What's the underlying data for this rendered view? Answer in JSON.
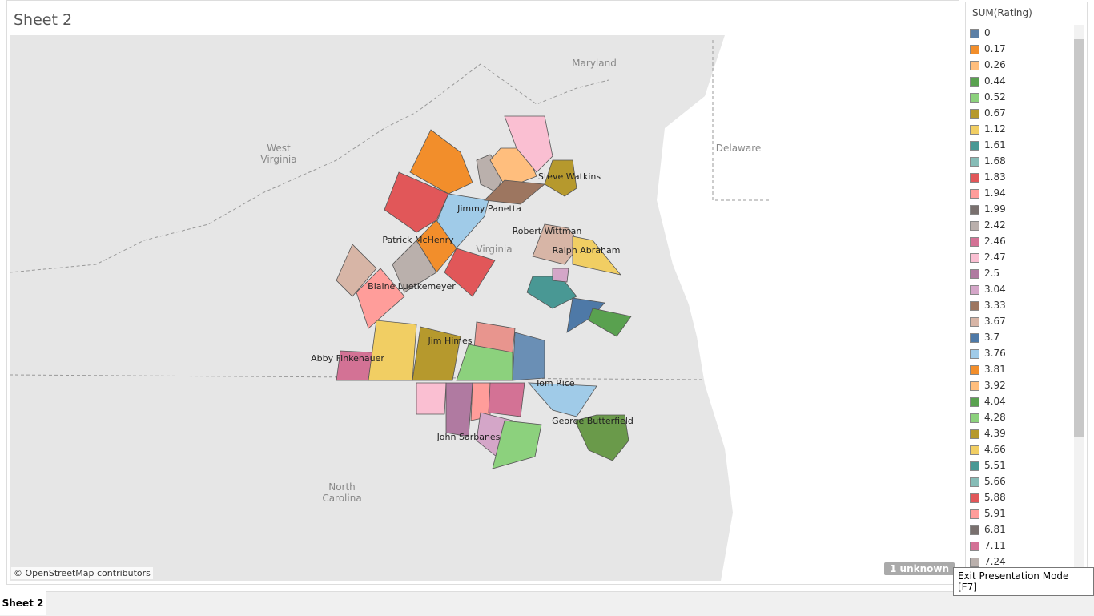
{
  "header": {
    "title": "Sheet 2"
  },
  "map": {
    "places": [
      "Maryland",
      "West Virginia",
      "Delaware",
      "Virginia",
      "North Carolina"
    ],
    "labels": [
      "Steve Watkins",
      "Jimmy Panetta",
      "Robert Wittman",
      "Ralph Abraham",
      "Patrick McHenry",
      "Blaine Luetkemeyer",
      "Jim Himes",
      "Abby Finkenauer",
      "Tom Rice",
      "George Butterfield",
      "John Sarbanes"
    ],
    "attribution": "© OpenStreetMap contributors",
    "unknown_badge": "1 unknown"
  },
  "legend": {
    "title": "SUM(Rating)",
    "items": [
      {
        "label": "0",
        "color": "#5b7fa6"
      },
      {
        "label": "0.17",
        "color": "#f28e2b"
      },
      {
        "label": "0.26",
        "color": "#ffbe7d"
      },
      {
        "label": "0.44",
        "color": "#59a14f"
      },
      {
        "label": "0.52",
        "color": "#8cd17d"
      },
      {
        "label": "0.67",
        "color": "#b6992d"
      },
      {
        "label": "1.12",
        "color": "#f1ce63"
      },
      {
        "label": "1.61",
        "color": "#499894"
      },
      {
        "label": "1.68",
        "color": "#86bcb6"
      },
      {
        "label": "1.83",
        "color": "#e15759"
      },
      {
        "label": "1.94",
        "color": "#ff9d9a"
      },
      {
        "label": "1.99",
        "color": "#79706e"
      },
      {
        "label": "2.42",
        "color": "#bab0ac"
      },
      {
        "label": "2.46",
        "color": "#d37295"
      },
      {
        "label": "2.47",
        "color": "#fabfd2"
      },
      {
        "label": "2.5",
        "color": "#b07aa1"
      },
      {
        "label": "3.04",
        "color": "#d4a6c8"
      },
      {
        "label": "3.33",
        "color": "#9d7660"
      },
      {
        "label": "3.67",
        "color": "#d7b5a6"
      },
      {
        "label": "3.7",
        "color": "#4e79a7"
      },
      {
        "label": "3.76",
        "color": "#a0cbe8"
      },
      {
        "label": "3.81",
        "color": "#f28e2b"
      },
      {
        "label": "3.92",
        "color": "#ffbe7d"
      },
      {
        "label": "4.04",
        "color": "#59a14f"
      },
      {
        "label": "4.28",
        "color": "#8cd17d"
      },
      {
        "label": "4.39",
        "color": "#b6992d"
      },
      {
        "label": "4.66",
        "color": "#f1ce63"
      },
      {
        "label": "5.51",
        "color": "#499894"
      },
      {
        "label": "5.66",
        "color": "#86bcb6"
      },
      {
        "label": "5.88",
        "color": "#e15759"
      },
      {
        "label": "5.91",
        "color": "#ff9d9a"
      },
      {
        "label": "6.81",
        "color": "#79706e"
      },
      {
        "label": "7.11",
        "color": "#d37295"
      },
      {
        "label": "7.24",
        "color": "#bab0ac"
      }
    ]
  },
  "tabs": [
    "Sheet 2"
  ],
  "tooltip": "Exit Presentation Mode [F7]"
}
